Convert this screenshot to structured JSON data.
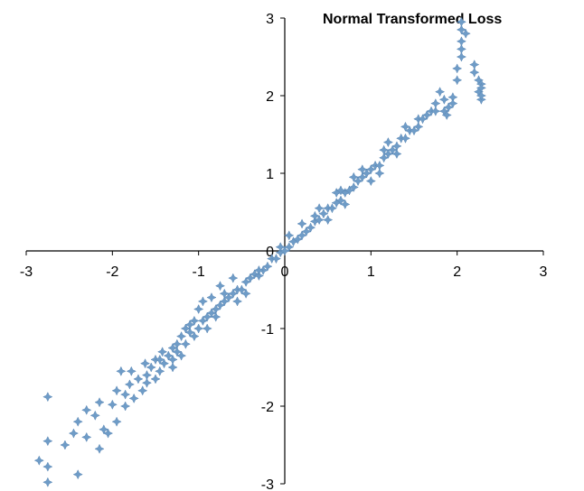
{
  "chart_data": {
    "type": "scatter",
    "title": "Normal Transformed Loss",
    "xlabel": "",
    "ylabel": "",
    "xlim": [
      -3,
      3
    ],
    "ylim": [
      -3,
      3
    ],
    "x_ticks": [
      "-3",
      "-2",
      "-1",
      "0",
      "1",
      "2",
      "3"
    ],
    "y_ticks": [
      "-3",
      "-2",
      "-1",
      "0",
      "1",
      "2",
      "3"
    ],
    "grid": false,
    "legend": "none",
    "marker": "plus-star",
    "color": "#6f9cc7",
    "series": [
      {
        "values": [
          [
            -2.85,
            -2.7
          ],
          [
            -2.75,
            -1.88
          ],
          [
            -2.75,
            -2.45
          ],
          [
            -2.75,
            -2.78
          ],
          [
            -2.75,
            -2.98
          ],
          [
            -2.4,
            -2.88
          ],
          [
            -2.55,
            -2.5
          ],
          [
            -2.45,
            -2.35
          ],
          [
            -2.4,
            -2.2
          ],
          [
            -2.3,
            -2.4
          ],
          [
            -2.3,
            -2.05
          ],
          [
            -2.2,
            -2.12
          ],
          [
            -2.15,
            -2.55
          ],
          [
            -2.15,
            -1.95
          ],
          [
            -2.1,
            -2.3
          ],
          [
            -2.05,
            -2.35
          ],
          [
            -2.0,
            -1.98
          ],
          [
            -1.95,
            -2.2
          ],
          [
            -1.95,
            -1.8
          ],
          [
            -1.9,
            -1.55
          ],
          [
            -1.85,
            -2.0
          ],
          [
            -1.85,
            -1.85
          ],
          [
            -1.8,
            -1.72
          ],
          [
            -1.78,
            -1.55
          ],
          [
            -1.75,
            -1.9
          ],
          [
            -1.7,
            -1.65
          ],
          [
            -1.65,
            -1.8
          ],
          [
            -1.62,
            -1.45
          ],
          [
            -1.6,
            -1.6
          ],
          [
            -1.55,
            -1.5
          ],
          [
            -1.5,
            -1.4
          ],
          [
            -1.5,
            -1.65
          ],
          [
            -1.45,
            -1.55
          ],
          [
            -1.42,
            -1.3
          ],
          [
            -1.4,
            -1.45
          ],
          [
            -1.35,
            -1.35
          ],
          [
            -1.3,
            -1.4
          ],
          [
            -1.3,
            -1.25
          ],
          [
            -1.25,
            -1.2
          ],
          [
            -1.2,
            -1.35
          ],
          [
            -1.2,
            -1.1
          ],
          [
            -1.15,
            -1.2
          ],
          [
            -1.1,
            -1.05
          ],
          [
            -1.1,
            -0.95
          ],
          [
            -1.05,
            -1.1
          ],
          [
            -1.0,
            -1.0
          ],
          [
            -1.0,
            -0.75
          ],
          [
            -0.95,
            -0.9
          ],
          [
            -0.95,
            -0.65
          ],
          [
            -0.9,
            -0.85
          ],
          [
            -0.85,
            -0.8
          ],
          [
            -0.85,
            -0.6
          ],
          [
            -0.8,
            -0.75
          ],
          [
            -0.75,
            -0.7
          ],
          [
            -0.75,
            -0.45
          ],
          [
            -0.7,
            -0.65
          ],
          [
            -0.65,
            -0.6
          ],
          [
            -0.6,
            -0.55
          ],
          [
            -0.6,
            -0.35
          ],
          [
            -0.55,
            -0.5
          ],
          [
            -0.5,
            -0.5
          ],
          [
            -0.45,
            -0.4
          ],
          [
            -0.45,
            -0.55
          ],
          [
            -0.4,
            -0.35
          ],
          [
            -0.35,
            -0.3
          ],
          [
            -0.3,
            -0.32
          ],
          [
            -0.25,
            -0.25
          ],
          [
            -0.2,
            -0.2
          ],
          [
            -0.15,
            -0.1
          ],
          [
            -0.1,
            -0.1
          ],
          [
            -0.05,
            -0.02
          ],
          [
            -0.05,
            0.05
          ],
          [
            0.0,
            0.0
          ],
          [
            0.05,
            0.05
          ],
          [
            0.05,
            0.2
          ],
          [
            0.1,
            0.12
          ],
          [
            0.15,
            0.15
          ],
          [
            0.2,
            0.2
          ],
          [
            0.2,
            0.35
          ],
          [
            0.25,
            0.25
          ],
          [
            0.3,
            0.3
          ],
          [
            0.35,
            0.38
          ],
          [
            0.4,
            0.4
          ],
          [
            0.4,
            0.55
          ],
          [
            0.45,
            0.48
          ],
          [
            0.5,
            0.55
          ],
          [
            0.55,
            0.55
          ],
          [
            0.6,
            0.62
          ],
          [
            0.6,
            0.75
          ],
          [
            0.65,
            0.65
          ],
          [
            0.7,
            0.75
          ],
          [
            0.75,
            0.78
          ],
          [
            0.8,
            0.82
          ],
          [
            0.8,
            0.95
          ],
          [
            0.85,
            0.9
          ],
          [
            0.9,
            0.95
          ],
          [
            0.95,
            1.0
          ],
          [
            1.0,
            1.05
          ],
          [
            1.0,
            0.9
          ],
          [
            1.05,
            1.1
          ],
          [
            1.1,
            1.1
          ],
          [
            1.15,
            1.2
          ],
          [
            1.2,
            1.25
          ],
          [
            1.2,
            1.4
          ],
          [
            1.25,
            1.3
          ],
          [
            1.3,
            1.35
          ],
          [
            1.35,
            1.45
          ],
          [
            1.4,
            1.45
          ],
          [
            1.45,
            1.55
          ],
          [
            1.5,
            1.55
          ],
          [
            1.55,
            1.6
          ],
          [
            1.55,
            1.7
          ],
          [
            1.6,
            1.7
          ],
          [
            1.65,
            1.75
          ],
          [
            1.7,
            1.8
          ],
          [
            1.75,
            1.8
          ],
          [
            1.75,
            1.9
          ],
          [
            1.8,
            2.05
          ],
          [
            1.85,
            1.8
          ],
          [
            1.85,
            1.95
          ],
          [
            1.88,
            1.75
          ],
          [
            1.95,
            1.98
          ],
          [
            2.0,
            2.2
          ],
          [
            2.0,
            2.35
          ],
          [
            2.05,
            2.5
          ],
          [
            2.05,
            2.6
          ],
          [
            2.05,
            2.7
          ],
          [
            2.05,
            2.85
          ],
          [
            2.05,
            2.95
          ],
          [
            2.1,
            2.8
          ],
          [
            2.2,
            2.3
          ],
          [
            2.2,
            2.4
          ],
          [
            2.25,
            2.2
          ],
          [
            2.25,
            2.05
          ],
          [
            2.28,
            2.15
          ],
          [
            2.28,
            1.95
          ],
          [
            2.28,
            2.1
          ],
          [
            2.28,
            2.0
          ],
          [
            1.9,
            1.85
          ],
          [
            1.95,
            1.9
          ],
          [
            -1.3,
            -1.5
          ],
          [
            -1.15,
            -1.0
          ],
          [
            -0.9,
            -1.0
          ],
          [
            -0.7,
            -0.55
          ],
          [
            -0.55,
            -0.65
          ],
          [
            -0.3,
            -0.25
          ],
          [
            0.35,
            0.45
          ],
          [
            0.5,
            0.4
          ],
          [
            0.65,
            0.78
          ],
          [
            0.7,
            0.6
          ],
          [
            0.9,
            1.05
          ],
          [
            1.1,
            1.0
          ],
          [
            1.15,
            1.3
          ],
          [
            1.3,
            1.25
          ],
          [
            1.4,
            1.6
          ],
          [
            -1.6,
            -1.7
          ],
          [
            -1.45,
            -1.4
          ],
          [
            -1.25,
            -1.3
          ],
          [
            -1.05,
            -0.9
          ],
          [
            -0.8,
            -0.85
          ]
        ]
      }
    ]
  }
}
